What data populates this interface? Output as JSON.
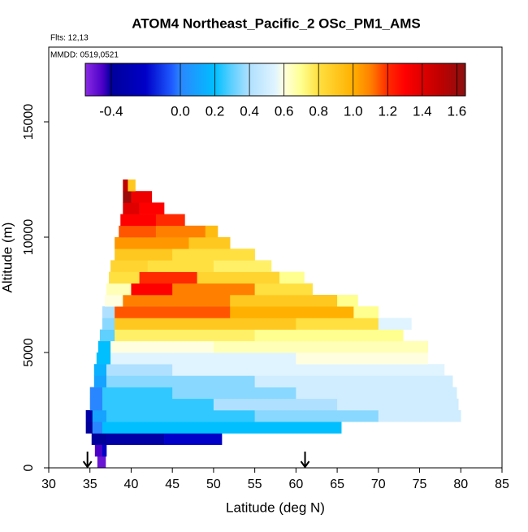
{
  "chart_data": {
    "type": "heatmap",
    "title": "ATOM4 Northeast_Pacific_2 OSc_PM1_AMS",
    "notes": [
      "Flts: 12,13",
      "MMDD: 0519,0521"
    ],
    "x_label": "Latitude (deg N)",
    "y_label": "Altitude (m)",
    "xlim": [
      30,
      85
    ],
    "xticks": [
      30,
      35,
      40,
      45,
      50,
      55,
      60,
      65,
      70,
      75,
      80,
      85
    ],
    "ylim": [
      0,
      18240
    ],
    "yticks": [
      0,
      5000,
      10000,
      15000
    ],
    "arrows": [
      34.7,
      61.1
    ],
    "colorscale": {
      "values": [
        -0.55,
        -0.45,
        -0.4,
        -0.2,
        -0.05,
        0.0,
        0.2,
        0.3,
        0.4,
        0.55,
        0.6,
        0.7,
        0.8,
        1.0,
        1.1,
        1.2,
        1.3,
        1.5,
        1.65
      ],
      "colors": [
        "#8a2be2",
        "#4b00c8",
        "#00009a",
        "#0000c8",
        "#1e5aff",
        "#2a86ff",
        "#00bfff",
        "#60d0ff",
        "#b0e0ff",
        "#e0f4ff",
        "#ffffe0",
        "#ffff90",
        "#ffe040",
        "#ffb000",
        "#ff8000",
        "#ff2a00",
        "#ff0000",
        "#c00000",
        "#8b1010"
      ]
    },
    "colorbar_lim": [
      -0.55,
      1.65
    ],
    "colorbar_ticks": [
      -0.4,
      {
        "value": 0,
        "label": "0.0"
      },
      0.2,
      0.4,
      0.6,
      0.8,
      {
        "value": 1,
        "label": "1.0"
      },
      1.2,
      1.4,
      1.6
    ],
    "cells": [
      [
        35.9,
        36.9,
        0,
        500,
        -0.5
      ],
      [
        35.6,
        36.5,
        500,
        1000,
        -0.45
      ],
      [
        36.5,
        37,
        500,
        1000,
        -0.2
      ],
      [
        35.2,
        37,
        1000,
        1500,
        -0.4
      ],
      [
        37,
        44,
        1000,
        1500,
        -0.35
      ],
      [
        44,
        51,
        1000,
        1500,
        -0.2
      ],
      [
        34.5,
        35.3,
        1500,
        2000,
        -0.4
      ],
      [
        35.3,
        36.5,
        1500,
        2000,
        0.0
      ],
      [
        36.5,
        65.5,
        1500,
        2000,
        0.2
      ],
      [
        34.5,
        35.3,
        2000,
        2500,
        -0.35
      ],
      [
        35.3,
        37,
        2000,
        2500,
        0.1
      ],
      [
        37,
        55,
        2000,
        2500,
        0.25
      ],
      [
        55,
        70,
        2000,
        2500,
        0.35
      ],
      [
        70,
        80,
        2000,
        2500,
        0.5
      ],
      [
        35,
        36.5,
        2500,
        3000,
        0.0
      ],
      [
        36.5,
        50,
        2500,
        3000,
        0.25
      ],
      [
        50,
        65,
        2500,
        3000,
        0.4
      ],
      [
        65,
        79.7,
        2500,
        3000,
        0.5
      ],
      [
        35,
        36.5,
        3000,
        3500,
        0.0
      ],
      [
        36.5,
        45,
        3000,
        3500,
        0.25
      ],
      [
        45,
        60,
        3000,
        3500,
        0.35
      ],
      [
        60,
        79.5,
        3000,
        3500,
        0.5
      ],
      [
        35.5,
        37,
        3500,
        4000,
        0.1
      ],
      [
        37,
        55,
        3500,
        4000,
        0.35
      ],
      [
        55,
        79,
        3500,
        4000,
        0.5
      ],
      [
        35.5,
        37,
        4000,
        4500,
        0.15
      ],
      [
        37,
        45,
        4000,
        4500,
        0.4
      ],
      [
        45,
        78,
        4000,
        4500,
        0.55
      ],
      [
        35.8,
        37.5,
        4500,
        5000,
        0.2
      ],
      [
        37.5,
        60,
        4500,
        5000,
        0.55
      ],
      [
        60,
        76,
        4500,
        5000,
        0.6
      ],
      [
        36,
        37.5,
        5000,
        5500,
        0.2
      ],
      [
        37.5,
        50,
        5000,
        5500,
        0.6
      ],
      [
        50,
        76,
        5000,
        5500,
        0.65
      ],
      [
        36.2,
        38,
        5500,
        6000,
        0.3
      ],
      [
        38,
        55,
        5500,
        6000,
        0.75
      ],
      [
        55,
        73,
        5500,
        6000,
        0.7
      ],
      [
        36.5,
        38,
        6000,
        6500,
        0.35
      ],
      [
        38,
        60,
        6000,
        6500,
        0.9
      ],
      [
        60,
        70,
        6000,
        6500,
        0.8
      ],
      [
        70,
        74,
        6000,
        6500,
        0.55
      ],
      [
        36.5,
        38,
        6500,
        7000,
        0.4
      ],
      [
        38,
        52,
        6500,
        7000,
        1.15
      ],
      [
        52,
        67,
        6500,
        7000,
        1.0
      ],
      [
        67,
        70,
        6500,
        7000,
        0.7
      ],
      [
        36.8,
        39,
        7000,
        7500,
        0.6
      ],
      [
        39,
        52,
        7000,
        7500,
        1.1
      ],
      [
        52,
        65,
        7000,
        7500,
        0.9
      ],
      [
        65,
        67.5,
        7000,
        7500,
        0.7
      ],
      [
        37,
        40,
        7500,
        8000,
        0.65
      ],
      [
        40,
        45,
        7500,
        8000,
        1.3
      ],
      [
        45,
        55,
        7500,
        8000,
        1.1
      ],
      [
        55,
        62,
        7500,
        8000,
        0.8
      ],
      [
        37.3,
        41,
        8000,
        8500,
        0.8
      ],
      [
        41,
        48,
        8000,
        8500,
        1.2
      ],
      [
        48,
        58,
        8000,
        8500,
        0.85
      ],
      [
        58,
        61,
        8000,
        8500,
        0.7
      ],
      [
        37.5,
        42,
        8500,
        9000,
        0.85
      ],
      [
        42,
        50,
        8500,
        9000,
        0.8
      ],
      [
        50,
        57,
        8500,
        9000,
        0.75
      ],
      [
        38,
        45,
        9000,
        9500,
        0.9
      ],
      [
        45,
        55,
        9000,
        9500,
        0.8
      ],
      [
        38,
        42,
        9500,
        10000,
        1.05
      ],
      [
        42,
        47,
        9500,
        10000,
        1.05
      ],
      [
        47,
        52,
        9500,
        10000,
        0.9
      ],
      [
        38.5,
        43,
        10000,
        10500,
        1.15
      ],
      [
        43,
        49,
        10000,
        10500,
        1.1
      ],
      [
        49,
        50.5,
        10000,
        10500,
        0.95
      ],
      [
        38.7,
        43,
        10500,
        11000,
        1.3
      ],
      [
        43,
        46.5,
        10500,
        11000,
        1.2
      ],
      [
        39,
        41,
        11000,
        11500,
        1.4
      ],
      [
        41,
        44,
        11000,
        11500,
        1.3
      ],
      [
        39,
        40,
        11500,
        12000,
        1.6
      ],
      [
        40,
        42.5,
        11500,
        12000,
        1.35
      ],
      [
        39,
        39.6,
        12000,
        12500,
        1.5
      ],
      [
        39.6,
        40.5,
        12000,
        12500,
        0.9
      ]
    ]
  }
}
